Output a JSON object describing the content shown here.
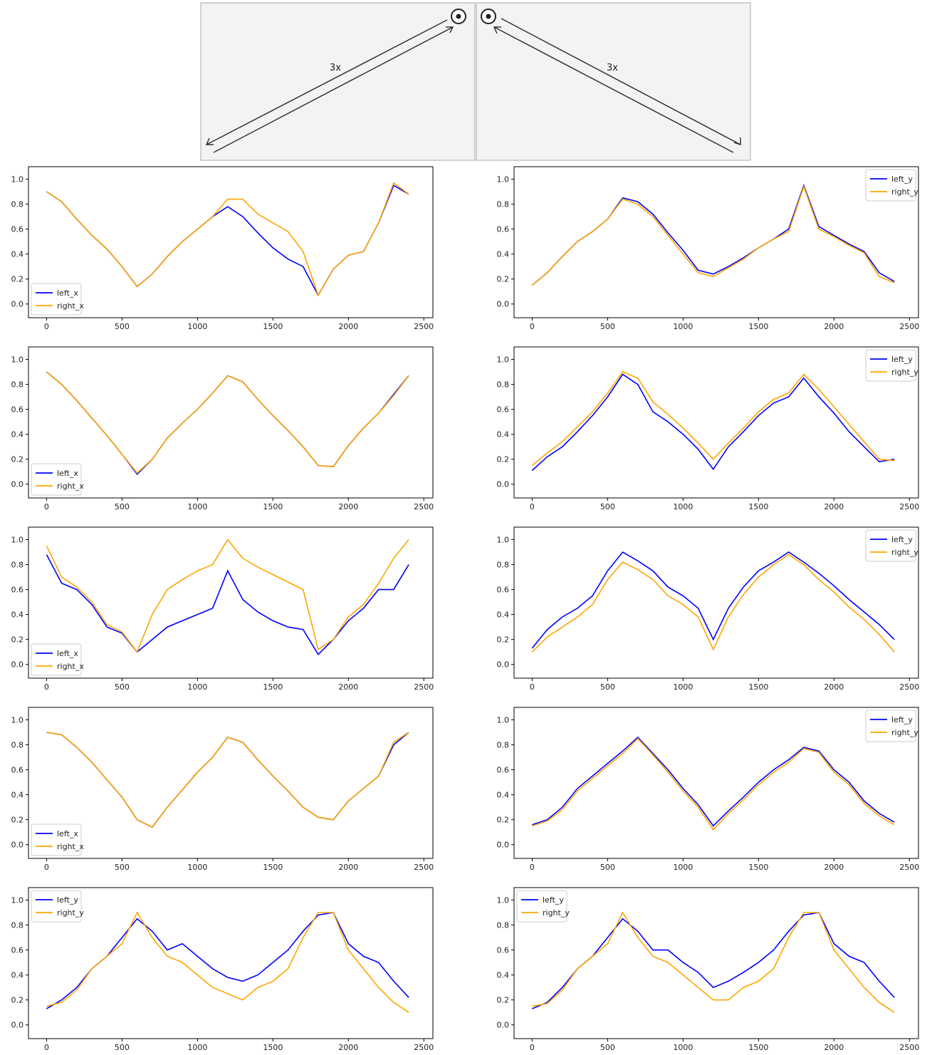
{
  "diagram": {
    "left_label": "3x",
    "right_label": "3x"
  },
  "chart_data": [
    {
      "type": "line",
      "legend": "lower left",
      "xlim": [
        -120,
        2560
      ],
      "ylim": [
        -0.11,
        1.1
      ],
      "xticks": [
        0,
        500,
        1000,
        1500,
        2000,
        2500
      ],
      "yticks": [
        {
          "value": 0,
          "label": "0.0"
        },
        0.2,
        0.4,
        0.6,
        0.8,
        {
          "value": 1,
          "label": "1.0"
        }
      ],
      "x": [
        0,
        100,
        200,
        300,
        400,
        500,
        600,
        700,
        800,
        900,
        1000,
        1100,
        1200,
        1300,
        1400,
        1500,
        1600,
        1700,
        1800,
        1900,
        2000,
        2100,
        2200,
        2300,
        2400
      ],
      "series": [
        {
          "name": "left_x",
          "color": "#0000ff",
          "values": [
            0.9,
            0.82,
            0.68,
            0.55,
            0.44,
            0.3,
            0.14,
            0.24,
            0.38,
            0.5,
            0.6,
            0.7,
            0.78,
            0.7,
            0.57,
            0.45,
            0.36,
            0.3,
            0.07,
            0.28,
            0.39,
            0.42,
            0.65,
            0.95,
            0.88
          ]
        },
        {
          "name": "right_x",
          "color": "#ffa500",
          "values": [
            0.9,
            0.82,
            0.68,
            0.55,
            0.44,
            0.3,
            0.14,
            0.24,
            0.38,
            0.5,
            0.6,
            0.7,
            0.84,
            0.84,
            0.72,
            0.65,
            0.58,
            0.42,
            0.07,
            0.28,
            0.39,
            0.42,
            0.65,
            0.97,
            0.88
          ]
        }
      ]
    },
    {
      "type": "line",
      "legend": "upper right",
      "xlim": [
        -120,
        2560
      ],
      "ylim": [
        -0.11,
        1.1
      ],
      "xticks": [
        0,
        500,
        1000,
        1500,
        2000,
        2500
      ],
      "yticks": [
        {
          "value": 0,
          "label": "0.0"
        },
        0.2,
        0.4,
        0.6,
        0.8,
        {
          "value": 1,
          "label": "1.0"
        }
      ],
      "x": [
        0,
        100,
        200,
        300,
        400,
        500,
        600,
        700,
        800,
        900,
        1000,
        1100,
        1200,
        1300,
        1400,
        1500,
        1600,
        1700,
        1800,
        1900,
        2000,
        2100,
        2200,
        2300,
        2400
      ],
      "series": [
        {
          "name": "left_y",
          "color": "#0000ff",
          "values": [
            0.15,
            0.25,
            0.38,
            0.5,
            0.58,
            0.68,
            0.85,
            0.82,
            0.72,
            0.57,
            0.43,
            0.27,
            0.24,
            0.3,
            0.37,
            0.45,
            0.52,
            0.6,
            0.95,
            0.62,
            0.55,
            0.48,
            0.42,
            0.25,
            0.18
          ]
        },
        {
          "name": "right_y",
          "color": "#ffa500",
          "values": [
            0.15,
            0.25,
            0.38,
            0.5,
            0.58,
            0.68,
            0.84,
            0.8,
            0.7,
            0.55,
            0.4,
            0.25,
            0.22,
            0.29,
            0.36,
            0.45,
            0.52,
            0.58,
            0.94,
            0.6,
            0.54,
            0.47,
            0.41,
            0.22,
            0.17
          ]
        }
      ]
    },
    {
      "type": "line",
      "legend": "lower left",
      "xlim": [
        -120,
        2560
      ],
      "ylim": [
        -0.11,
        1.1
      ],
      "xticks": [
        0,
        500,
        1000,
        1500,
        2000,
        2500
      ],
      "yticks": [
        {
          "value": 0,
          "label": "0.0"
        },
        0.2,
        0.4,
        0.6,
        0.8,
        {
          "value": 1,
          "label": "1.0"
        }
      ],
      "x": [
        0,
        100,
        200,
        300,
        400,
        500,
        600,
        700,
        800,
        900,
        1000,
        1100,
        1200,
        1300,
        1400,
        1500,
        1600,
        1700,
        1800,
        1900,
        2000,
        2100,
        2200,
        2300,
        2400
      ],
      "series": [
        {
          "name": "left_x",
          "color": "#0000ff",
          "values": [
            0.9,
            0.8,
            0.67,
            0.53,
            0.39,
            0.24,
            0.08,
            0.2,
            0.37,
            0.49,
            0.6,
            0.73,
            0.87,
            0.82,
            0.68,
            0.55,
            0.43,
            0.3,
            0.15,
            0.14,
            0.31,
            0.45,
            0.57,
            0.72,
            0.87
          ]
        },
        {
          "name": "right_x",
          "color": "#ffa500",
          "values": [
            0.9,
            0.8,
            0.67,
            0.53,
            0.39,
            0.24,
            0.09,
            0.2,
            0.37,
            0.49,
            0.6,
            0.73,
            0.87,
            0.82,
            0.68,
            0.55,
            0.43,
            0.3,
            0.15,
            0.14,
            0.31,
            0.45,
            0.57,
            0.71,
            0.87
          ]
        }
      ]
    },
    {
      "type": "line",
      "legend": "upper right",
      "xlim": [
        -120,
        2560
      ],
      "ylim": [
        -0.11,
        1.1
      ],
      "xticks": [
        0,
        500,
        1000,
        1500,
        2000,
        2500
      ],
      "yticks": [
        {
          "value": 0,
          "label": "0.0"
        },
        0.2,
        0.4,
        0.6,
        0.8,
        {
          "value": 1,
          "label": "1.0"
        }
      ],
      "x": [
        0,
        100,
        200,
        300,
        400,
        500,
        600,
        700,
        800,
        900,
        1000,
        1100,
        1200,
        1300,
        1400,
        1500,
        1600,
        1700,
        1800,
        1900,
        2000,
        2100,
        2200,
        2300,
        2400
      ],
      "series": [
        {
          "name": "left_y",
          "color": "#0000ff",
          "values": [
            0.11,
            0.22,
            0.3,
            0.42,
            0.55,
            0.7,
            0.88,
            0.8,
            0.58,
            0.5,
            0.4,
            0.28,
            0.12,
            0.3,
            0.42,
            0.55,
            0.65,
            0.7,
            0.85,
            0.7,
            0.57,
            0.42,
            0.3,
            0.18,
            0.2
          ]
        },
        {
          "name": "right_y",
          "color": "#ffa500",
          "values": [
            0.15,
            0.25,
            0.34,
            0.46,
            0.58,
            0.73,
            0.9,
            0.85,
            0.66,
            0.56,
            0.45,
            0.33,
            0.2,
            0.33,
            0.45,
            0.58,
            0.68,
            0.73,
            0.88,
            0.76,
            0.62,
            0.48,
            0.34,
            0.2,
            0.19
          ]
        }
      ]
    },
    {
      "type": "line",
      "legend": "lower left",
      "xlim": [
        -120,
        2560
      ],
      "ylim": [
        -0.11,
        1.1
      ],
      "xticks": [
        0,
        500,
        1000,
        1500,
        2000,
        2500
      ],
      "yticks": [
        {
          "value": 0,
          "label": "0.0"
        },
        0.2,
        0.4,
        0.6,
        0.8,
        {
          "value": 1,
          "label": "1.0"
        }
      ],
      "x": [
        0,
        100,
        200,
        300,
        400,
        500,
        600,
        700,
        800,
        900,
        1000,
        1100,
        1200,
        1300,
        1400,
        1500,
        1600,
        1700,
        1800,
        1900,
        2000,
        2100,
        2200,
        2300,
        2400
      ],
      "series": [
        {
          "name": "left_x",
          "color": "#0000ff",
          "values": [
            0.88,
            0.65,
            0.6,
            0.48,
            0.3,
            0.25,
            0.1,
            0.2,
            0.3,
            0.35,
            0.4,
            0.45,
            0.75,
            0.52,
            0.42,
            0.35,
            0.3,
            0.28,
            0.08,
            0.2,
            0.35,
            0.45,
            0.6,
            0.6,
            0.8
          ]
        },
        {
          "name": "right_x",
          "color": "#ffa500",
          "values": [
            0.95,
            0.7,
            0.62,
            0.5,
            0.32,
            0.26,
            0.1,
            0.4,
            0.6,
            0.68,
            0.75,
            0.8,
            1.0,
            0.85,
            0.78,
            0.72,
            0.66,
            0.6,
            0.12,
            0.2,
            0.38,
            0.48,
            0.65,
            0.85,
            1.0
          ]
        }
      ]
    },
    {
      "type": "line",
      "legend": "upper right",
      "xlim": [
        -120,
        2560
      ],
      "ylim": [
        -0.11,
        1.1
      ],
      "xticks": [
        0,
        500,
        1000,
        1500,
        2000,
        2500
      ],
      "yticks": [
        {
          "value": 0,
          "label": "0.0"
        },
        0.2,
        0.4,
        0.6,
        0.8,
        {
          "value": 1,
          "label": "1.0"
        }
      ],
      "x": [
        0,
        100,
        200,
        300,
        400,
        500,
        600,
        700,
        800,
        900,
        1000,
        1100,
        1200,
        1300,
        1400,
        1500,
        1600,
        1700,
        1800,
        1900,
        2000,
        2100,
        2200,
        2300,
        2400
      ],
      "series": [
        {
          "name": "left_y",
          "color": "#0000ff",
          "values": [
            0.13,
            0.28,
            0.38,
            0.45,
            0.55,
            0.75,
            0.9,
            0.83,
            0.75,
            0.62,
            0.55,
            0.45,
            0.2,
            0.45,
            0.62,
            0.75,
            0.82,
            0.9,
            0.82,
            0.73,
            0.63,
            0.52,
            0.42,
            0.32,
            0.2
          ]
        },
        {
          "name": "right_y",
          "color": "#ffa500",
          "values": [
            0.1,
            0.22,
            0.3,
            0.38,
            0.48,
            0.68,
            0.82,
            0.76,
            0.68,
            0.55,
            0.48,
            0.38,
            0.12,
            0.38,
            0.56,
            0.7,
            0.8,
            0.88,
            0.8,
            0.68,
            0.58,
            0.46,
            0.36,
            0.24,
            0.1
          ]
        }
      ]
    },
    {
      "type": "line",
      "legend": "lower left",
      "xlim": [
        -120,
        2560
      ],
      "ylim": [
        -0.11,
        1.1
      ],
      "xticks": [
        0,
        500,
        1000,
        1500,
        2000,
        2500
      ],
      "yticks": [
        {
          "value": 0,
          "label": "0.0"
        },
        0.2,
        0.4,
        0.6,
        0.8,
        {
          "value": 1,
          "label": "1.0"
        }
      ],
      "x": [
        0,
        100,
        200,
        300,
        400,
        500,
        600,
        700,
        800,
        900,
        1000,
        1100,
        1200,
        1300,
        1400,
        1500,
        1600,
        1700,
        1800,
        1900,
        2000,
        2100,
        2200,
        2300,
        2400
      ],
      "series": [
        {
          "name": "left_x",
          "color": "#0000ff",
          "values": [
            0.9,
            0.88,
            0.78,
            0.66,
            0.52,
            0.38,
            0.2,
            0.14,
            0.3,
            0.44,
            0.58,
            0.7,
            0.86,
            0.82,
            0.68,
            0.55,
            0.43,
            0.3,
            0.22,
            0.2,
            0.35,
            0.45,
            0.55,
            0.8,
            0.9
          ]
        },
        {
          "name": "right_x",
          "color": "#ffa500",
          "values": [
            0.9,
            0.88,
            0.78,
            0.66,
            0.52,
            0.38,
            0.2,
            0.14,
            0.3,
            0.44,
            0.58,
            0.7,
            0.86,
            0.82,
            0.68,
            0.55,
            0.43,
            0.3,
            0.22,
            0.2,
            0.35,
            0.45,
            0.55,
            0.82,
            0.9
          ]
        }
      ]
    },
    {
      "type": "line",
      "legend": "upper right",
      "xlim": [
        -120,
        2560
      ],
      "ylim": [
        -0.11,
        1.1
      ],
      "xticks": [
        0,
        500,
        1000,
        1500,
        2000,
        2500
      ],
      "yticks": [
        {
          "value": 0,
          "label": "0.0"
        },
        0.2,
        0.4,
        0.6,
        0.8,
        {
          "value": 1,
          "label": "1.0"
        }
      ],
      "x": [
        0,
        100,
        200,
        300,
        400,
        500,
        600,
        700,
        800,
        900,
        1000,
        1100,
        1200,
        1300,
        1400,
        1500,
        1600,
        1700,
        1800,
        1900,
        2000,
        2100,
        2200,
        2300,
        2400
      ],
      "series": [
        {
          "name": "left_y",
          "color": "#0000ff",
          "values": [
            0.16,
            0.2,
            0.3,
            0.45,
            0.55,
            0.65,
            0.75,
            0.86,
            0.73,
            0.6,
            0.45,
            0.32,
            0.15,
            0.27,
            0.38,
            0.5,
            0.6,
            0.68,
            0.78,
            0.75,
            0.6,
            0.5,
            0.35,
            0.25,
            0.18
          ]
        },
        {
          "name": "right_y",
          "color": "#ffa500",
          "values": [
            0.15,
            0.19,
            0.28,
            0.43,
            0.53,
            0.63,
            0.73,
            0.85,
            0.72,
            0.58,
            0.43,
            0.3,
            0.12,
            0.25,
            0.36,
            0.48,
            0.58,
            0.66,
            0.77,
            0.74,
            0.58,
            0.48,
            0.33,
            0.23,
            0.16
          ]
        }
      ]
    },
    {
      "type": "line",
      "legend": "upper left",
      "xlim": [
        -120,
        2560
      ],
      "ylim": [
        -0.11,
        1.1
      ],
      "xticks": [
        0,
        500,
        1000,
        1500,
        2000,
        2500
      ],
      "yticks": [
        {
          "value": 0,
          "label": "0.0"
        },
        0.2,
        0.4,
        0.6,
        0.8,
        {
          "value": 1,
          "label": "1.0"
        }
      ],
      "x": [
        0,
        100,
        200,
        300,
        400,
        500,
        600,
        700,
        800,
        900,
        1000,
        1100,
        1200,
        1300,
        1400,
        1500,
        1600,
        1700,
        1800,
        1900,
        2000,
        2100,
        2200,
        2300,
        2400
      ],
      "series": [
        {
          "name": "left_y",
          "color": "#0000ff",
          "values": [
            0.13,
            0.2,
            0.3,
            0.45,
            0.55,
            0.7,
            0.85,
            0.75,
            0.6,
            0.65,
            0.55,
            0.45,
            0.38,
            0.35,
            0.4,
            0.5,
            0.6,
            0.75,
            0.88,
            0.9,
            0.65,
            0.55,
            0.5,
            0.35,
            0.22
          ]
        },
        {
          "name": "right_y",
          "color": "#ffa500",
          "values": [
            0.15,
            0.18,
            0.28,
            0.45,
            0.55,
            0.65,
            0.9,
            0.7,
            0.55,
            0.5,
            0.4,
            0.3,
            0.25,
            0.2,
            0.3,
            0.35,
            0.45,
            0.7,
            0.9,
            0.9,
            0.6,
            0.45,
            0.3,
            0.18,
            0.1
          ]
        }
      ]
    },
    {
      "type": "line",
      "legend": "upper left",
      "xlim": [
        -120,
        2560
      ],
      "ylim": [
        -0.11,
        1.1
      ],
      "xticks": [
        0,
        500,
        1000,
        1500,
        2000,
        2500
      ],
      "yticks": [
        {
          "value": 0,
          "label": "0.0"
        },
        0.2,
        0.4,
        0.6,
        0.8,
        {
          "value": 1,
          "label": "1.0"
        }
      ],
      "x": [
        0,
        100,
        200,
        300,
        400,
        500,
        600,
        700,
        800,
        900,
        1000,
        1100,
        1200,
        1300,
        1400,
        1500,
        1600,
        1700,
        1800,
        1900,
        2000,
        2100,
        2200,
        2300,
        2400
      ],
      "series": [
        {
          "name": "left_y",
          "color": "#0000ff",
          "values": [
            0.13,
            0.18,
            0.3,
            0.45,
            0.55,
            0.7,
            0.85,
            0.75,
            0.6,
            0.6,
            0.5,
            0.42,
            0.3,
            0.35,
            0.42,
            0.5,
            0.6,
            0.75,
            0.88,
            0.9,
            0.65,
            0.55,
            0.5,
            0.35,
            0.22
          ]
        },
        {
          "name": "right_y",
          "color": "#ffa500",
          "values": [
            0.15,
            0.17,
            0.28,
            0.45,
            0.55,
            0.65,
            0.9,
            0.7,
            0.55,
            0.5,
            0.4,
            0.3,
            0.2,
            0.2,
            0.3,
            0.35,
            0.45,
            0.7,
            0.9,
            0.9,
            0.6,
            0.45,
            0.3,
            0.18,
            0.1
          ]
        }
      ]
    }
  ]
}
